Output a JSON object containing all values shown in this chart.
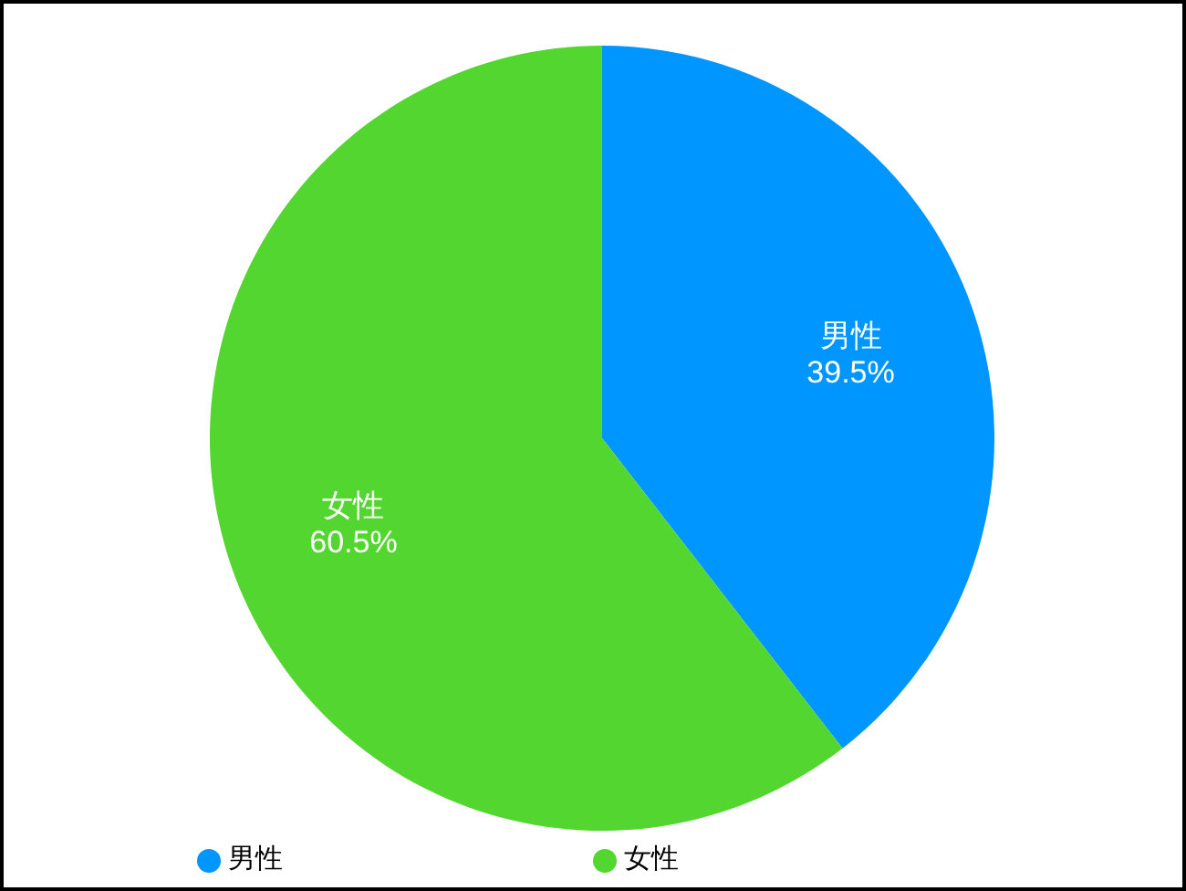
{
  "chart_data": {
    "type": "pie",
    "categories": [
      "男性",
      "女性"
    ],
    "values": [
      39.5,
      60.5
    ],
    "colors": [
      "#0096ff",
      "#53d62f"
    ],
    "value_labels": [
      "39.5%",
      "60.5%"
    ],
    "legend": "bottom"
  }
}
